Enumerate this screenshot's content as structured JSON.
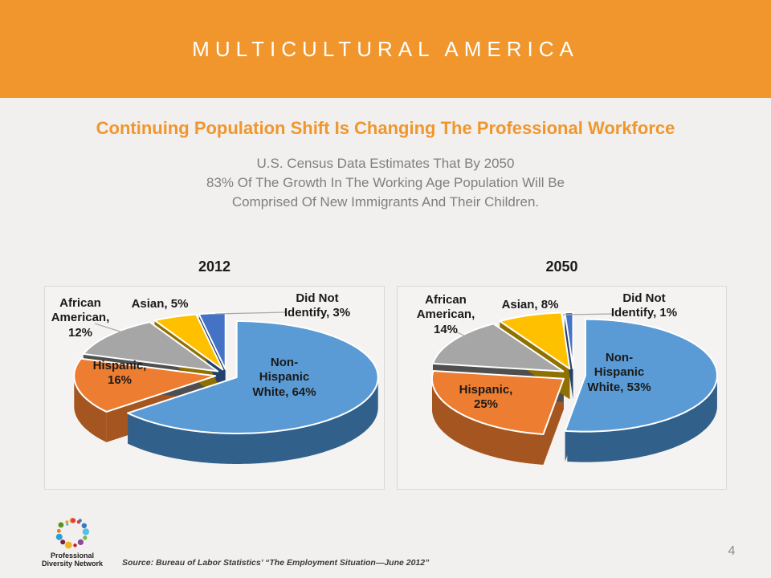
{
  "banner": {
    "title": "MULTICULTURAL AMERICA",
    "bg_color": "#F0962D",
    "text_color": "#FFFFFF"
  },
  "headline": {
    "text": "Continuing Population Shift Is Changing The Professional Workforce",
    "color": "#F0962D"
  },
  "subtitle": {
    "lines": [
      "U.S. Census Data Estimates That By 2050",
      "83% Of The Growth In The Working Age Population Will Be",
      "Comprised Of New Immigrants And Their Children."
    ],
    "color": "#7F7F7F"
  },
  "chart_data": [
    {
      "type": "pie",
      "style": "3d-exploded",
      "title": "2012",
      "start_angle_deg": -90,
      "direction": "clockwise",
      "categories": [
        "Non-Hispanic White",
        "Hispanic",
        "African American",
        "Asian",
        "Did Not Identify"
      ],
      "values": [
        64,
        16,
        12,
        5,
        3
      ],
      "slice_labels": [
        "Non-\nHispanic\nWhite, 64%",
        "Hispanic,\n16%",
        "African\nAmerican,\n12%",
        "Asian, 5%",
        "Did Not\nIdentify, 3%"
      ],
      "colors": [
        "#5B9BD5",
        "#ED7D31",
        "#A6A6A6",
        "#FFC000",
        "#4472C4"
      ],
      "side_colors": [
        "#31608B",
        "#A55620",
        "#4F4F4F",
        "#8F7000",
        "#24406E"
      ]
    },
    {
      "type": "pie",
      "style": "3d-exploded",
      "title": "2050",
      "start_angle_deg": -90,
      "direction": "clockwise",
      "categories": [
        "Non-Hispanic White",
        "Hispanic",
        "African American",
        "Asian",
        "Did Not Identify"
      ],
      "values": [
        53,
        25,
        14,
        8,
        1
      ],
      "slice_labels": [
        "Non-\nHispanic\nWhite, 53%",
        "Hispanic,\n25%",
        "African\nAmerican,\n14%",
        "Asian, 8%",
        "Did Not\nIdentify, 1%"
      ],
      "colors": [
        "#5B9BD5",
        "#ED7D31",
        "#A6A6A6",
        "#FFC000",
        "#4472C4"
      ],
      "side_colors": [
        "#31608B",
        "#A55620",
        "#4F4F4F",
        "#8F7000",
        "#24406E"
      ]
    }
  ],
  "footer": {
    "logo_lines": [
      "Professional",
      "Diversity Network"
    ],
    "logo_dot_colors": [
      "#E8A33D",
      "#E23C39",
      "#3B78C3",
      "#57BEE6",
      "#6FBE44",
      "#8F4899",
      "#C01F2F",
      "#F2B51C",
      "#7A1F3D",
      "#2B9FD8",
      "#E87722",
      "#5B8F22"
    ],
    "source": "Source: Bureau of Labor Statistics’ “The Employment Situation—June 2012”",
    "page_number": "4"
  }
}
